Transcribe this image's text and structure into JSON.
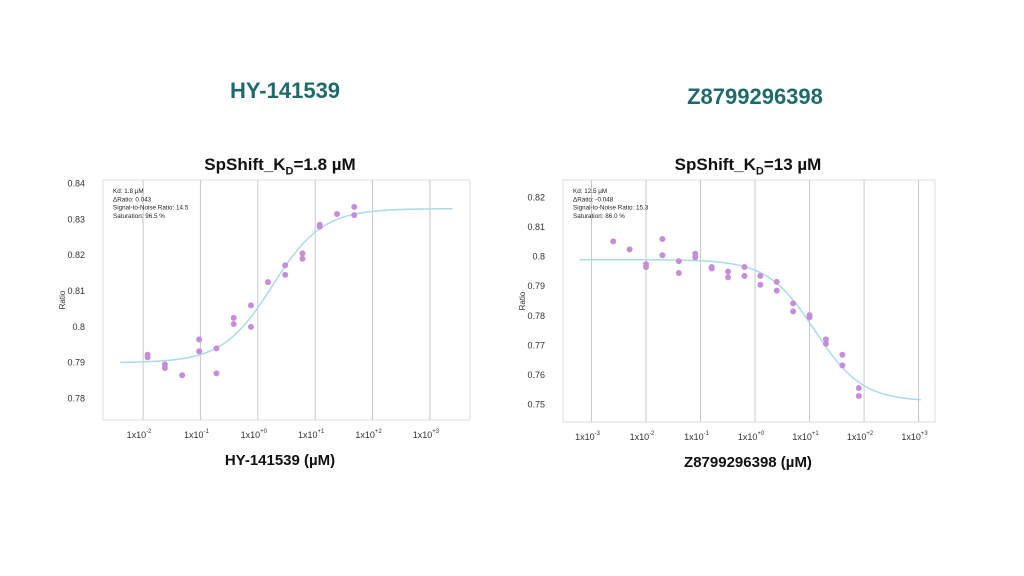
{
  "compounds": [
    "HY-141539",
    "Z8799296398"
  ],
  "chart_data": [
    {
      "type": "scatter",
      "title": {
        "prefix": "SpShift_K",
        "sub": "D",
        "suffix": "=1.8 µM"
      },
      "xlabel": "HY-141539 (µM)",
      "ylabel": "Ratio",
      "x_scale": "log",
      "x_ticks": [
        0.01,
        0.1,
        1,
        10,
        100,
        1000
      ],
      "x_tick_labels": [
        {
          "base": "1x10",
          "exp": "-2"
        },
        {
          "base": "1x10",
          "exp": "-1"
        },
        {
          "base": "1x10",
          "exp": "+0"
        },
        {
          "base": "1x10",
          "exp": "+1"
        },
        {
          "base": "1x10",
          "exp": "+2"
        },
        {
          "base": "1x10",
          "exp": "+3"
        }
      ],
      "xlim": [
        0.002,
        5000
      ],
      "y_ticks": [
        0.78,
        0.79,
        0.8,
        0.81,
        0.82,
        0.83,
        0.84
      ],
      "y_tick_labels": [
        "0.78",
        "0.79",
        "0.8",
        "0.81",
        "0.82",
        "0.83",
        "0.84"
      ],
      "ylim": [
        0.774,
        0.841
      ],
      "annotation": [
        "Kd: 1.8 µM",
        "ΔRatio: 0.043",
        "Signal-to-Noise Ratio: 14.5",
        "Saturation: 96.5 %"
      ],
      "fit": {
        "bottom": 0.79,
        "top": 0.833,
        "kd": 1.8,
        "x_range": [
          0.004,
          2500
        ]
      },
      "points": [
        {
          "x": 0.012,
          "y": 0.7915
        },
        {
          "x": 0.012,
          "y": 0.7922
        },
        {
          "x": 0.024,
          "y": 0.7895
        },
        {
          "x": 0.024,
          "y": 0.7885
        },
        {
          "x": 0.048,
          "y": 0.7865
        },
        {
          "x": 0.095,
          "y": 0.7965
        },
        {
          "x": 0.095,
          "y": 0.7932
        },
        {
          "x": 0.19,
          "y": 0.794
        },
        {
          "x": 0.19,
          "y": 0.787
        },
        {
          "x": 0.38,
          "y": 0.8025
        },
        {
          "x": 0.38,
          "y": 0.8008
        },
        {
          "x": 0.76,
          "y": 0.806
        },
        {
          "x": 0.76,
          "y": 0.8
        },
        {
          "x": 1.5,
          "y": 0.8125
        },
        {
          "x": 3.0,
          "y": 0.8172
        },
        {
          "x": 3.0,
          "y": 0.8145
        },
        {
          "x": 6.0,
          "y": 0.8205
        },
        {
          "x": 6.0,
          "y": 0.819
        },
        {
          "x": 12,
          "y": 0.828
        },
        {
          "x": 12,
          "y": 0.8285
        },
        {
          "x": 24,
          "y": 0.8315
        },
        {
          "x": 48,
          "y": 0.8335
        },
        {
          "x": 48,
          "y": 0.8312
        }
      ]
    },
    {
      "type": "scatter",
      "title": {
        "prefix": "SpShift_K",
        "sub": "D",
        "suffix": "=13 µM"
      },
      "xlabel": "Z8799296398 (µM)",
      "ylabel": "Ratio",
      "x_scale": "log",
      "x_ticks": [
        0.001,
        0.01,
        0.1,
        1,
        10,
        100,
        1000
      ],
      "x_tick_labels": [
        {
          "base": "1x10",
          "exp": "-3"
        },
        {
          "base": "1x10",
          "exp": "-2"
        },
        {
          "base": "1x10",
          "exp": "-1"
        },
        {
          "base": "1x10",
          "exp": "+0"
        },
        {
          "base": "1x10",
          "exp": "+1"
        },
        {
          "base": "1x10",
          "exp": "+2"
        },
        {
          "base": "1x10",
          "exp": "+3"
        }
      ],
      "xlim": [
        0.0003,
        2000
      ],
      "y_ticks": [
        0.75,
        0.76,
        0.77,
        0.78,
        0.79,
        0.8,
        0.81,
        0.82
      ],
      "y_tick_labels": [
        "0.75",
        "0.76",
        "0.77",
        "0.78",
        "0.79",
        "0.8",
        "0.81",
        "0.82"
      ],
      "ylim": [
        0.744,
        0.826
      ],
      "annotation": [
        "Kd: 12.5 µM",
        "ΔRatio: -0.048",
        "Signal-to-Noise Ratio: 15.3",
        "Saturation: 86.0 %"
      ],
      "fit": {
        "bottom": 0.799,
        "top": 0.751,
        "kd": 12.5,
        "x_range": [
          0.0006,
          1100
        ]
      },
      "points": [
        {
          "x": 0.0025,
          "y": 0.8052
        },
        {
          "x": 0.005,
          "y": 0.8025
        },
        {
          "x": 0.01,
          "y": 0.7975
        },
        {
          "x": 0.01,
          "y": 0.7965
        },
        {
          "x": 0.02,
          "y": 0.806
        },
        {
          "x": 0.02,
          "y": 0.8005
        },
        {
          "x": 0.04,
          "y": 0.7985
        },
        {
          "x": 0.04,
          "y": 0.7945
        },
        {
          "x": 0.08,
          "y": 0.801
        },
        {
          "x": 0.08,
          "y": 0.7998
        },
        {
          "x": 0.16,
          "y": 0.7965
        },
        {
          "x": 0.16,
          "y": 0.796
        },
        {
          "x": 0.32,
          "y": 0.795
        },
        {
          "x": 0.32,
          "y": 0.793
        },
        {
          "x": 0.64,
          "y": 0.7965
        },
        {
          "x": 0.64,
          "y": 0.7935
        },
        {
          "x": 1.25,
          "y": 0.7935
        },
        {
          "x": 1.25,
          "y": 0.7905
        },
        {
          "x": 2.5,
          "y": 0.7915
        },
        {
          "x": 2.5,
          "y": 0.7885
        },
        {
          "x": 5,
          "y": 0.7842
        },
        {
          "x": 5,
          "y": 0.7815
        },
        {
          "x": 10,
          "y": 0.7802
        },
        {
          "x": 10,
          "y": 0.7795
        },
        {
          "x": 20,
          "y": 0.772
        },
        {
          "x": 20,
          "y": 0.7705
        },
        {
          "x": 40,
          "y": 0.7668
        },
        {
          "x": 40,
          "y": 0.7632
        },
        {
          "x": 80,
          "y": 0.7555
        },
        {
          "x": 80,
          "y": 0.7528
        }
      ]
    }
  ]
}
